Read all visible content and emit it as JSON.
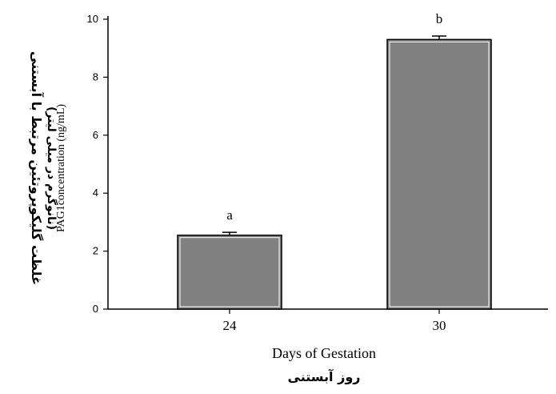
{
  "chart_data": {
    "type": "bar",
    "categories": [
      "24",
      "30"
    ],
    "values": [
      2.55,
      9.3
    ],
    "errors": [
      0.1,
      0.12
    ],
    "significance": [
      "a",
      "b"
    ],
    "ylim": [
      0,
      10
    ],
    "yticks": [
      0,
      2,
      4,
      6,
      8,
      10
    ],
    "xlabel": "Days of Gestation",
    "xlabel_fa": "روز آبستنی",
    "ylabel": "PAG1concentration (ng/mL)",
    "ylabel_fa_line1": "غلظت گلیکوپروتئین مرتبط با آبستنی",
    "ylabel_fa_line2": "(نانوگرم در میلی لیتر)",
    "bar_color": "#808080",
    "grid": false
  }
}
